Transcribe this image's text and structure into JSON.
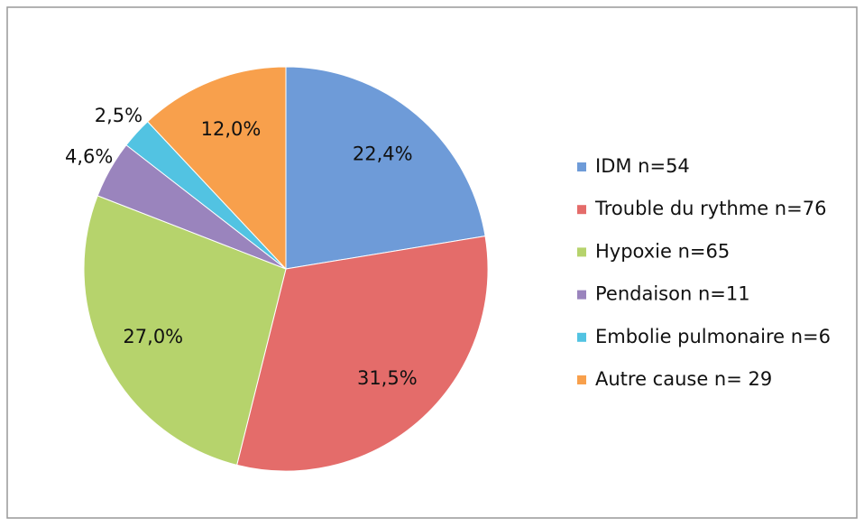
{
  "chart_data": {
    "type": "pie",
    "categories": [
      "IDM n=54",
      "Trouble du rythme n=76",
      "Hypoxie n=65",
      "Pendaison n=11",
      "Embolie pulmonaire n=6",
      "Autre cause n= 29"
    ],
    "values": [
      22.4,
      31.5,
      27.0,
      4.6,
      2.5,
      12.0
    ],
    "value_labels": [
      "22,4%",
      "31,5%",
      "27,0%",
      "4,6%",
      "2,5%",
      "12,0%"
    ],
    "colors": [
      "#6e9bd8",
      "#e46c6a",
      "#b6d36c",
      "#9a84bd",
      "#52c3e2",
      "#f8a04c"
    ],
    "legend": "right"
  }
}
